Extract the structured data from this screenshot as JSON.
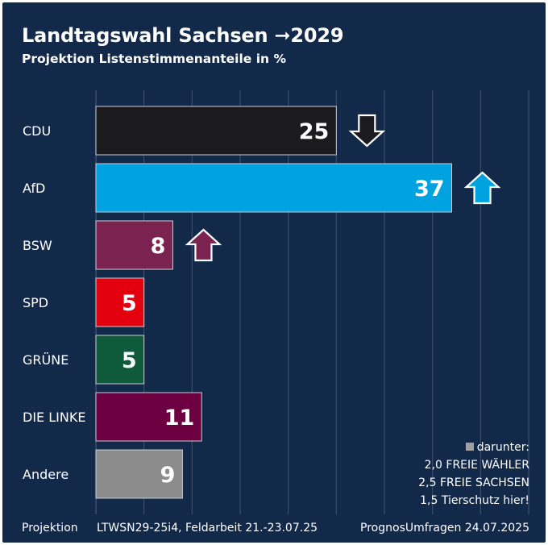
{
  "title": "Landtagswahl Sachsen ➞2029",
  "subtitle": "Projektion Listenstimmenanteile in %",
  "chart_data": {
    "type": "bar",
    "orientation": "horizontal",
    "categories": [
      "CDU",
      "AfD",
      "BSW",
      "SPD",
      "GRÜNE",
      "DIE LINKE",
      "Andere"
    ],
    "values": [
      25,
      37,
      8,
      5,
      5,
      11,
      9
    ],
    "value_labels": [
      "25",
      "37",
      "8",
      "5",
      "5",
      "11",
      "9"
    ],
    "colors": [
      "#1b1b1e",
      "#00a2e0",
      "#7a2350",
      "#e3000f",
      "#0f5a3a",
      "#6c0040",
      "#8c8c8c"
    ],
    "label_colors": [
      "#ffffff",
      "#ffffff",
      "#ffffff",
      "#ffffff",
      "#ffffff",
      "#ffffff",
      "#ffffff"
    ],
    "trends": [
      {
        "category": "CDU",
        "direction": "down",
        "color": "#1b1b1e"
      },
      {
        "category": "AfD",
        "direction": "up",
        "color": "#00a2e0"
      },
      {
        "category": "BSW",
        "direction": "up",
        "color": "#7a2350"
      }
    ],
    "xlim": [
      0,
      45
    ],
    "grid": true
  },
  "note": {
    "lines": [
      "darunter:",
      "2,0 FREIE WÄHLER",
      "2,5 FREIE SACHSEN",
      "1,5 Tierschutz hier!"
    ]
  },
  "footer": {
    "left": "Projektion",
    "middle": "LTWSN29-25i4, Feldarbeit 21.-23.07.25",
    "right": "PrognosUmfragen 24.07.2025"
  }
}
